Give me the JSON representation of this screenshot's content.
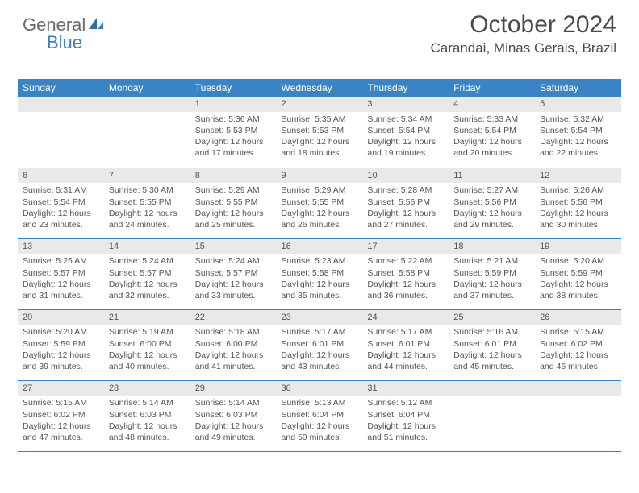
{
  "logo": {
    "part1": "General",
    "part2": "Blue"
  },
  "header": {
    "month_title": "October 2024",
    "location": "Carandai, Minas Gerais, Brazil"
  },
  "colors": {
    "header_bg": "#3a84c5",
    "accent": "#3a7fc2",
    "daynum_bg": "#e8e9ea",
    "text": "#4a4a4a"
  },
  "weekdays": [
    "Sunday",
    "Monday",
    "Tuesday",
    "Wednesday",
    "Thursday",
    "Friday",
    "Saturday"
  ],
  "weeks": [
    [
      {
        "empty": true
      },
      {
        "empty": true
      },
      {
        "day": "1",
        "sunrise": "Sunrise: 5:36 AM",
        "sunset": "Sunset: 5:53 PM",
        "daylight1": "Daylight: 12 hours",
        "daylight2": "and 17 minutes."
      },
      {
        "day": "2",
        "sunrise": "Sunrise: 5:35 AM",
        "sunset": "Sunset: 5:53 PM",
        "daylight1": "Daylight: 12 hours",
        "daylight2": "and 18 minutes."
      },
      {
        "day": "3",
        "sunrise": "Sunrise: 5:34 AM",
        "sunset": "Sunset: 5:54 PM",
        "daylight1": "Daylight: 12 hours",
        "daylight2": "and 19 minutes."
      },
      {
        "day": "4",
        "sunrise": "Sunrise: 5:33 AM",
        "sunset": "Sunset: 5:54 PM",
        "daylight1": "Daylight: 12 hours",
        "daylight2": "and 20 minutes."
      },
      {
        "day": "5",
        "sunrise": "Sunrise: 5:32 AM",
        "sunset": "Sunset: 5:54 PM",
        "daylight1": "Daylight: 12 hours",
        "daylight2": "and 22 minutes."
      }
    ],
    [
      {
        "day": "6",
        "sunrise": "Sunrise: 5:31 AM",
        "sunset": "Sunset: 5:54 PM",
        "daylight1": "Daylight: 12 hours",
        "daylight2": "and 23 minutes."
      },
      {
        "day": "7",
        "sunrise": "Sunrise: 5:30 AM",
        "sunset": "Sunset: 5:55 PM",
        "daylight1": "Daylight: 12 hours",
        "daylight2": "and 24 minutes."
      },
      {
        "day": "8",
        "sunrise": "Sunrise: 5:29 AM",
        "sunset": "Sunset: 5:55 PM",
        "daylight1": "Daylight: 12 hours",
        "daylight2": "and 25 minutes."
      },
      {
        "day": "9",
        "sunrise": "Sunrise: 5:29 AM",
        "sunset": "Sunset: 5:55 PM",
        "daylight1": "Daylight: 12 hours",
        "daylight2": "and 26 minutes."
      },
      {
        "day": "10",
        "sunrise": "Sunrise: 5:28 AM",
        "sunset": "Sunset: 5:56 PM",
        "daylight1": "Daylight: 12 hours",
        "daylight2": "and 27 minutes."
      },
      {
        "day": "11",
        "sunrise": "Sunrise: 5:27 AM",
        "sunset": "Sunset: 5:56 PM",
        "daylight1": "Daylight: 12 hours",
        "daylight2": "and 29 minutes."
      },
      {
        "day": "12",
        "sunrise": "Sunrise: 5:26 AM",
        "sunset": "Sunset: 5:56 PM",
        "daylight1": "Daylight: 12 hours",
        "daylight2": "and 30 minutes."
      }
    ],
    [
      {
        "day": "13",
        "sunrise": "Sunrise: 5:25 AM",
        "sunset": "Sunset: 5:57 PM",
        "daylight1": "Daylight: 12 hours",
        "daylight2": "and 31 minutes."
      },
      {
        "day": "14",
        "sunrise": "Sunrise: 5:24 AM",
        "sunset": "Sunset: 5:57 PM",
        "daylight1": "Daylight: 12 hours",
        "daylight2": "and 32 minutes."
      },
      {
        "day": "15",
        "sunrise": "Sunrise: 5:24 AM",
        "sunset": "Sunset: 5:57 PM",
        "daylight1": "Daylight: 12 hours",
        "daylight2": "and 33 minutes."
      },
      {
        "day": "16",
        "sunrise": "Sunrise: 5:23 AM",
        "sunset": "Sunset: 5:58 PM",
        "daylight1": "Daylight: 12 hours",
        "daylight2": "and 35 minutes."
      },
      {
        "day": "17",
        "sunrise": "Sunrise: 5:22 AM",
        "sunset": "Sunset: 5:58 PM",
        "daylight1": "Daylight: 12 hours",
        "daylight2": "and 36 minutes."
      },
      {
        "day": "18",
        "sunrise": "Sunrise: 5:21 AM",
        "sunset": "Sunset: 5:59 PM",
        "daylight1": "Daylight: 12 hours",
        "daylight2": "and 37 minutes."
      },
      {
        "day": "19",
        "sunrise": "Sunrise: 5:20 AM",
        "sunset": "Sunset: 5:59 PM",
        "daylight1": "Daylight: 12 hours",
        "daylight2": "and 38 minutes."
      }
    ],
    [
      {
        "day": "20",
        "sunrise": "Sunrise: 5:20 AM",
        "sunset": "Sunset: 5:59 PM",
        "daylight1": "Daylight: 12 hours",
        "daylight2": "and 39 minutes."
      },
      {
        "day": "21",
        "sunrise": "Sunrise: 5:19 AM",
        "sunset": "Sunset: 6:00 PM",
        "daylight1": "Daylight: 12 hours",
        "daylight2": "and 40 minutes."
      },
      {
        "day": "22",
        "sunrise": "Sunrise: 5:18 AM",
        "sunset": "Sunset: 6:00 PM",
        "daylight1": "Daylight: 12 hours",
        "daylight2": "and 41 minutes."
      },
      {
        "day": "23",
        "sunrise": "Sunrise: 5:17 AM",
        "sunset": "Sunset: 6:01 PM",
        "daylight1": "Daylight: 12 hours",
        "daylight2": "and 43 minutes."
      },
      {
        "day": "24",
        "sunrise": "Sunrise: 5:17 AM",
        "sunset": "Sunset: 6:01 PM",
        "daylight1": "Daylight: 12 hours",
        "daylight2": "and 44 minutes."
      },
      {
        "day": "25",
        "sunrise": "Sunrise: 5:16 AM",
        "sunset": "Sunset: 6:01 PM",
        "daylight1": "Daylight: 12 hours",
        "daylight2": "and 45 minutes."
      },
      {
        "day": "26",
        "sunrise": "Sunrise: 5:15 AM",
        "sunset": "Sunset: 6:02 PM",
        "daylight1": "Daylight: 12 hours",
        "daylight2": "and 46 minutes."
      }
    ],
    [
      {
        "day": "27",
        "sunrise": "Sunrise: 5:15 AM",
        "sunset": "Sunset: 6:02 PM",
        "daylight1": "Daylight: 12 hours",
        "daylight2": "and 47 minutes."
      },
      {
        "day": "28",
        "sunrise": "Sunrise: 5:14 AM",
        "sunset": "Sunset: 6:03 PM",
        "daylight1": "Daylight: 12 hours",
        "daylight2": "and 48 minutes."
      },
      {
        "day": "29",
        "sunrise": "Sunrise: 5:14 AM",
        "sunset": "Sunset: 6:03 PM",
        "daylight1": "Daylight: 12 hours",
        "daylight2": "and 49 minutes."
      },
      {
        "day": "30",
        "sunrise": "Sunrise: 5:13 AM",
        "sunset": "Sunset: 6:04 PM",
        "daylight1": "Daylight: 12 hours",
        "daylight2": "and 50 minutes."
      },
      {
        "day": "31",
        "sunrise": "Sunrise: 5:12 AM",
        "sunset": "Sunset: 6:04 PM",
        "daylight1": "Daylight: 12 hours",
        "daylight2": "and 51 minutes."
      },
      {
        "empty": true
      },
      {
        "empty": true
      }
    ]
  ]
}
